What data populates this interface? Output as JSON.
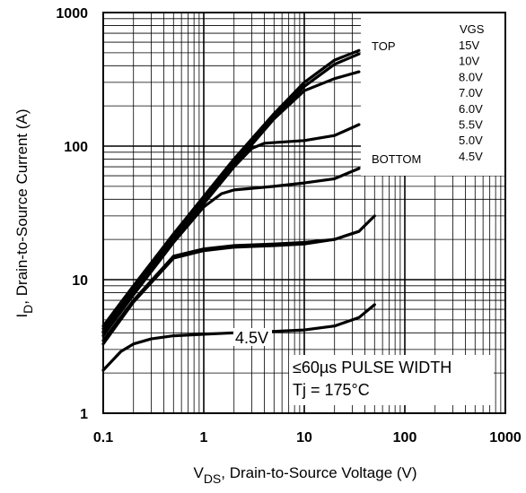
{
  "chart_data": {
    "type": "line",
    "x_scale": "log",
    "y_scale": "log",
    "xlim": [
      0.1,
      1000
    ],
    "ylim": [
      1,
      1000
    ],
    "x_ticks": [
      "0.1",
      "1",
      "10",
      "100",
      "1000"
    ],
    "y_ticks": [
      "1",
      "10",
      "100",
      "1000"
    ],
    "xlabel": {
      "main": "V",
      "sub": "DS",
      "rest": ", Drain-to-Source Voltage (V)"
    },
    "ylabel": {
      "main": "I",
      "sub": "D",
      "rest": ", Drain-to-Source Current (A)"
    },
    "grid": true,
    "legend": {
      "placement": "top-right",
      "header": "VGS",
      "top_label": "TOP",
      "bottom_label": "BOTTOM",
      "entries": [
        "15V",
        "10V",
        "8.0V",
        "7.0V",
        "6.0V",
        "5.5V",
        "5.0V",
        "4.5V"
      ]
    },
    "annotations": {
      "curve_label": "4.5V",
      "pulse_width": "≤60µs PULSE WIDTH",
      "temperature": "Tj = 175°C"
    },
    "series": [
      {
        "name": "15V",
        "x": [
          0.1,
          0.2,
          0.5,
          1,
          2,
          5,
          10,
          20,
          35
        ],
        "y": [
          4.5,
          9,
          22,
          42,
          80,
          175,
          300,
          440,
          520
        ]
      },
      {
        "name": "10V",
        "x": [
          0.1,
          0.2,
          0.5,
          1,
          2,
          5,
          10,
          20,
          35
        ],
        "y": [
          4.3,
          8.6,
          21,
          40,
          76,
          165,
          280,
          410,
          490
        ]
      },
      {
        "name": "8.0V",
        "x": [
          0.1,
          0.2,
          0.5,
          1,
          2,
          5,
          10,
          20,
          35
        ],
        "y": [
          4.1,
          8.2,
          20,
          38,
          72,
          160,
          260,
          320,
          360
        ]
      },
      {
        "name": "7.0V",
        "x": [
          0.1,
          0.2,
          0.5,
          1,
          2,
          3,
          4,
          10,
          20,
          35
        ],
        "y": [
          4.0,
          8,
          19.5,
          37,
          70,
          96,
          105,
          110,
          120,
          145
        ]
      },
      {
        "name": "6.0V",
        "x": [
          0.1,
          0.2,
          0.5,
          1,
          1.5,
          2,
          5,
          10,
          20,
          35
        ],
        "y": [
          3.8,
          7.7,
          19,
          35,
          44,
          47,
          50,
          53,
          57,
          68
        ]
      },
      {
        "name": "5.5V",
        "x": [
          0.1,
          0.2,
          0.5,
          1,
          2,
          5,
          10,
          20,
          35
        ],
        "y": [
          3.5,
          7,
          15,
          17,
          18,
          18.5,
          19,
          20,
          23
        ]
      },
      {
        "name": "5.0V",
        "x": [
          0.1,
          0.2,
          0.5,
          1,
          2,
          5,
          10,
          20,
          35,
          50
        ],
        "y": [
          3.3,
          6.8,
          14.5,
          16.5,
          17.5,
          18,
          18.5,
          20,
          23,
          30
        ]
      },
      {
        "name": "4.5V",
        "x": [
          0.1,
          0.15,
          0.2,
          0.3,
          0.5,
          1,
          2,
          5,
          10,
          20,
          35,
          50
        ],
        "y": [
          2.1,
          2.9,
          3.3,
          3.6,
          3.8,
          3.9,
          4.0,
          4.1,
          4.2,
          4.5,
          5.2,
          6.5
        ]
      }
    ]
  }
}
